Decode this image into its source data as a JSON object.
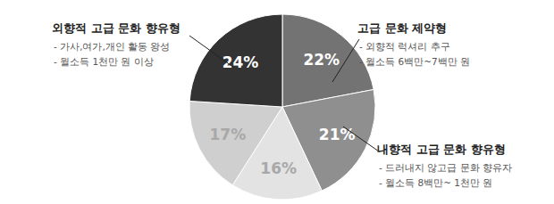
{
  "chart_data": {
    "type": "pie",
    "categories": [
      "고급 문화 제약형",
      "내향적 고급 문화 향유형",
      null,
      null,
      "외향적 고급 문화 향유형"
    ],
    "values": [
      22,
      21,
      16,
      17,
      24
    ],
    "value_labels": [
      "22%",
      "21%",
      "16%",
      "17%",
      "24%"
    ],
    "colors": [
      "#737373",
      "#8f8f8f",
      "#e3e3e3",
      "#cfcfcf",
      "#333333"
    ],
    "data_labels": true,
    "annotations": [
      [
        "- 외향적 럭셔리 추구",
        "- 월소득 6백만~7백만 원"
      ],
      [
        "- 드러내지 않고급 문화 향유자",
        "- 월소득 8백만~ 1천만 원"
      ],
      null,
      null,
      [
        "- 가사,여가,개인 활동 왕성",
        "- 월소득 1천만 원 이상"
      ]
    ]
  }
}
